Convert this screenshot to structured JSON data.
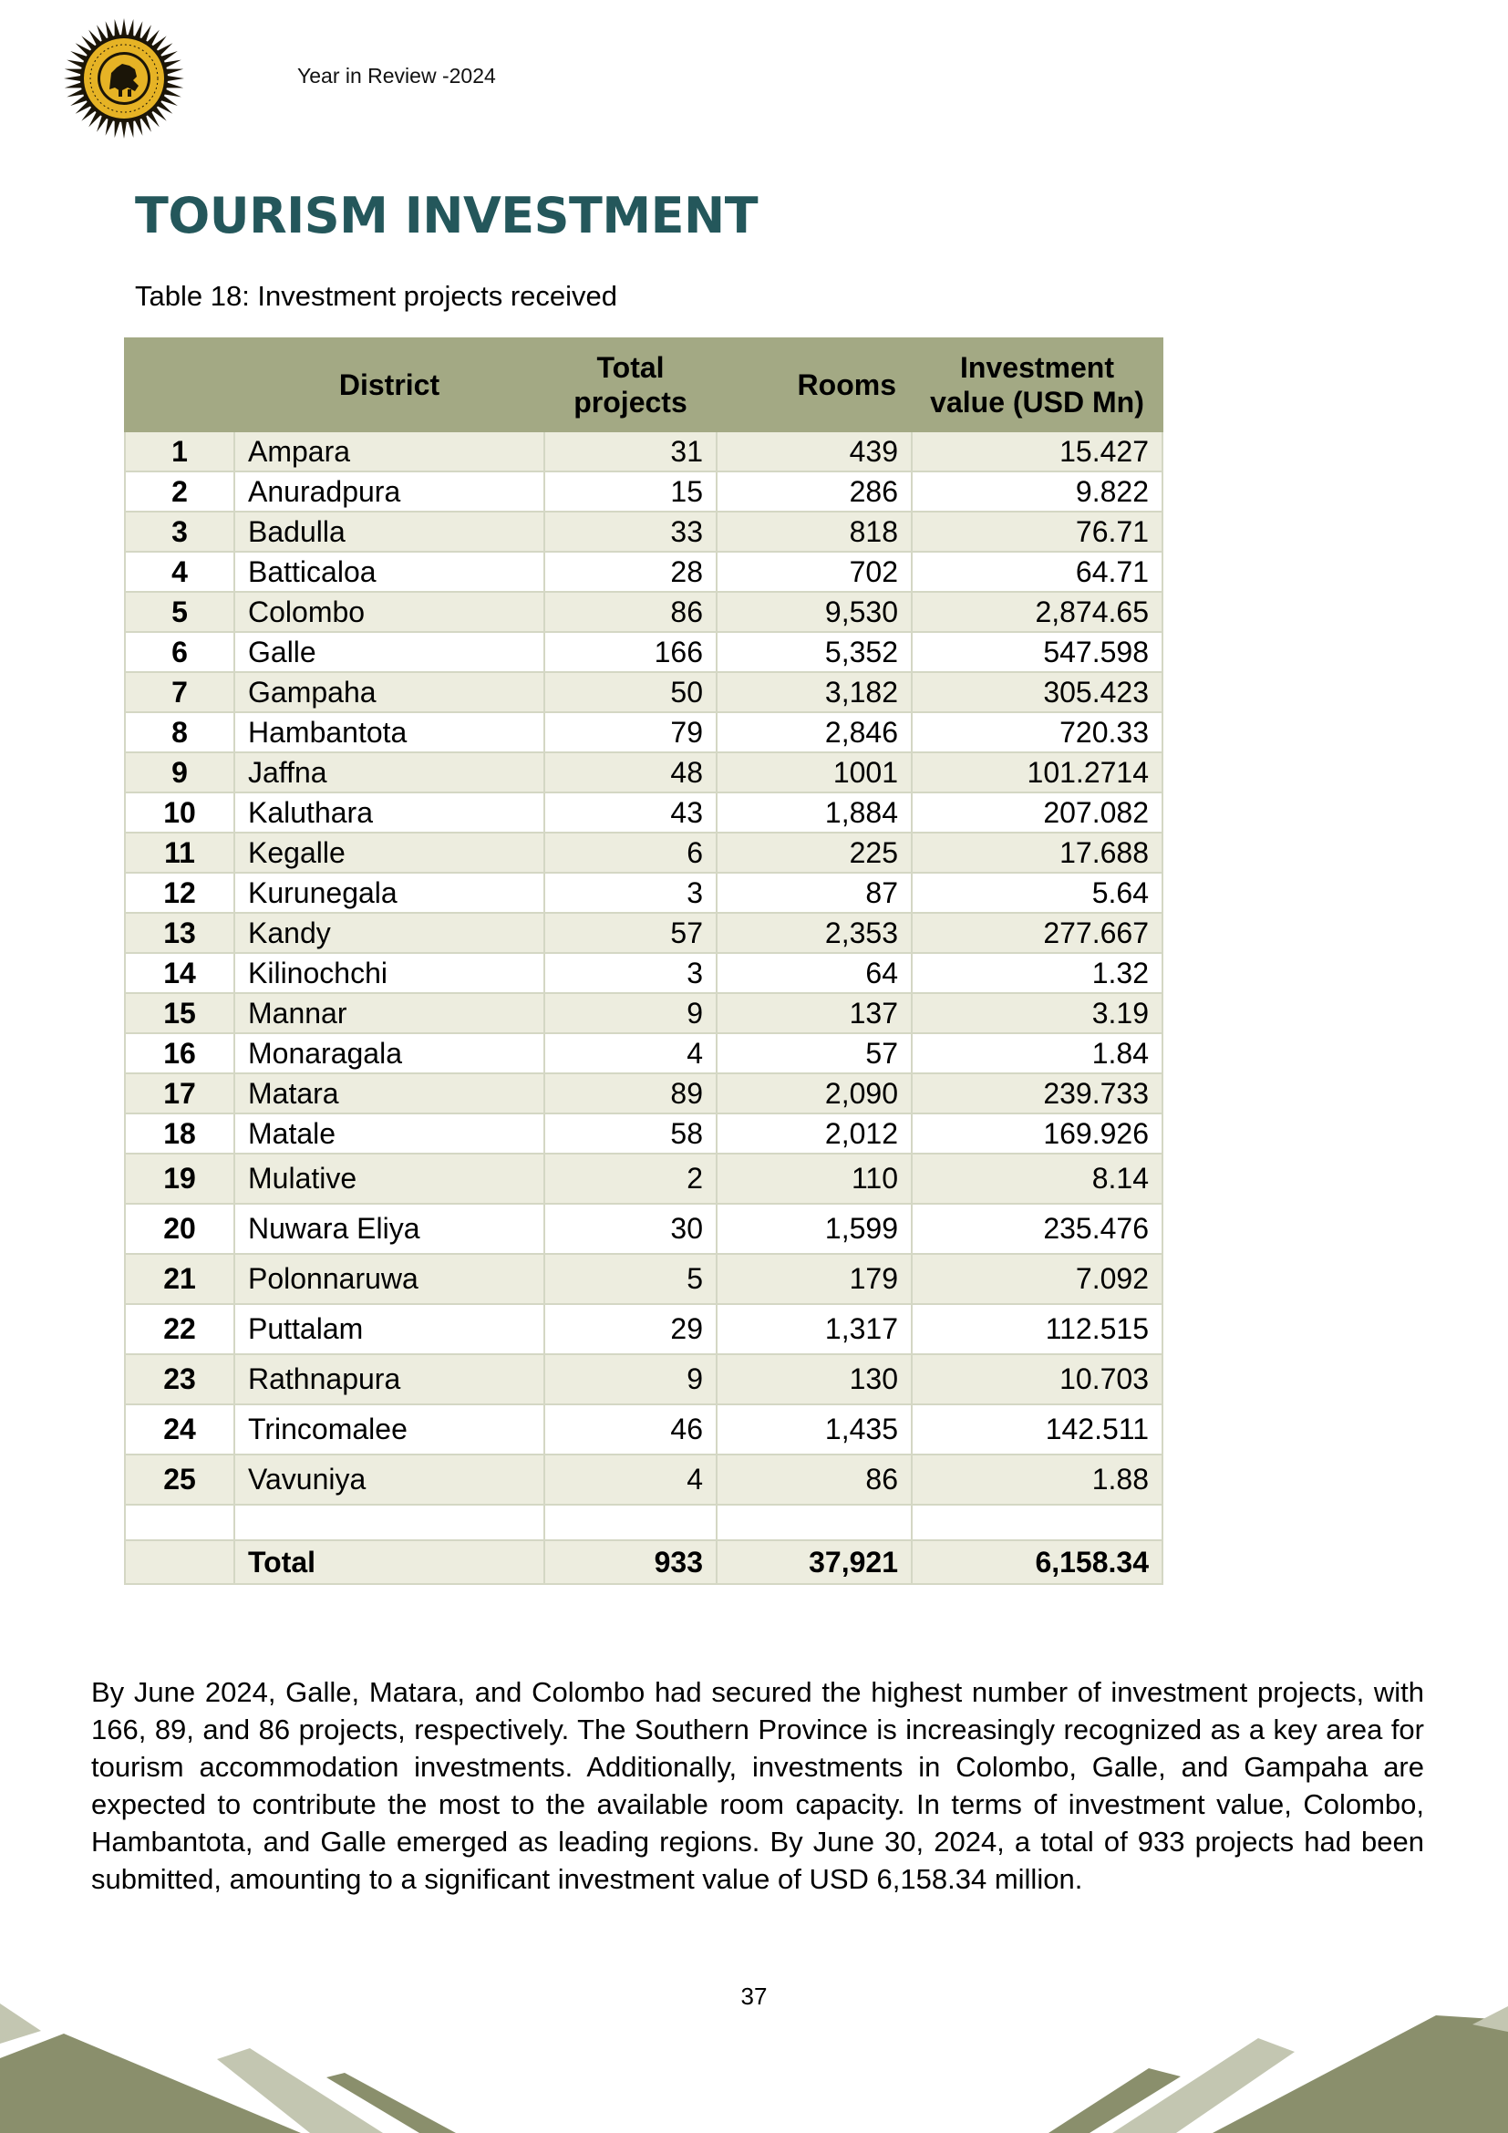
{
  "header": {
    "running_title": "Year in Review -2024",
    "logo_text": "SRI LANKA TOURISM DEVELOPMENT AUTHORITY"
  },
  "section_title": "TOURISM INVESTMENT",
  "table_caption": "Table 18: Investment projects received",
  "table": {
    "columns": [
      "",
      "District",
      "Total projects",
      "Rooms",
      "Investment value (USD Mn)"
    ],
    "rows": [
      {
        "no": "1",
        "district": "Ampara",
        "projects": "31",
        "rooms": "439",
        "investment": "15.427"
      },
      {
        "no": "2",
        "district": "Anuradpura",
        "projects": "15",
        "rooms": "286",
        "investment": "9.822"
      },
      {
        "no": "3",
        "district": "Badulla",
        "projects": "33",
        "rooms": "818",
        "investment": "76.71"
      },
      {
        "no": "4",
        "district": "Batticaloa",
        "projects": "28",
        "rooms": "702",
        "investment": "64.71"
      },
      {
        "no": "5",
        "district": "Colombo",
        "projects": "86",
        "rooms": "9,530",
        "investment": "2,874.65"
      },
      {
        "no": "6",
        "district": "Galle",
        "projects": "166",
        "rooms": "5,352",
        "investment": "547.598"
      },
      {
        "no": "7",
        "district": "Gampaha",
        "projects": "50",
        "rooms": "3,182",
        "investment": "305.423"
      },
      {
        "no": "8",
        "district": "Hambantota",
        "projects": "79",
        "rooms": "2,846",
        "investment": "720.33"
      },
      {
        "no": "9",
        "district": "Jaffna",
        "projects": "48",
        "rooms": "1001",
        "investment": "101.2714"
      },
      {
        "no": "10",
        "district": "Kaluthara",
        "projects": "43",
        "rooms": "1,884",
        "investment": "207.082"
      },
      {
        "no": "11",
        "district": "Kegalle",
        "projects": "6",
        "rooms": "225",
        "investment": "17.688"
      },
      {
        "no": "12",
        "district": "Kurunegala",
        "projects": "3",
        "rooms": "87",
        "investment": "5.64"
      },
      {
        "no": "13",
        "district": "Kandy",
        "projects": "57",
        "rooms": "2,353",
        "investment": "277.667"
      },
      {
        "no": "14",
        "district": "Kilinochchi",
        "projects": "3",
        "rooms": "64",
        "investment": "1.32"
      },
      {
        "no": "15",
        "district": "Mannar",
        "projects": "9",
        "rooms": "137",
        "investment": "3.19"
      },
      {
        "no": "16",
        "district": "Monaragala",
        "projects": "4",
        "rooms": "57",
        "investment": "1.84"
      },
      {
        "no": "17",
        "district": "Matara",
        "projects": "89",
        "rooms": "2,090",
        "investment": "239.733"
      },
      {
        "no": "18",
        "district": "Matale",
        "projects": "58",
        "rooms": "2,012",
        "investment": "169.926"
      },
      {
        "no": "19",
        "district": "Mulative",
        "projects": "2",
        "rooms": "110",
        "investment": "8.14"
      },
      {
        "no": "20",
        "district": "Nuwara Eliya",
        "projects": "30",
        "rooms": "1,599",
        "investment": "235.476"
      },
      {
        "no": "21",
        "district": "Polonnaruwa",
        "projects": "5",
        "rooms": "179",
        "investment": "7.092"
      },
      {
        "no": "22",
        "district": "Puttalam",
        "projects": "29",
        "rooms": "1,317",
        "investment": "112.515"
      },
      {
        "no": "23",
        "district": "Rathnapura",
        "projects": "9",
        "rooms": "130",
        "investment": "10.703"
      },
      {
        "no": "24",
        "district": "Trincomalee",
        "projects": "46",
        "rooms": "1,435",
        "investment": "142.511"
      },
      {
        "no": "25",
        "district": "Vavuniya",
        "projects": "4",
        "rooms": "86",
        "investment": "1.88"
      }
    ],
    "total": {
      "label": "Total",
      "projects": "933",
      "rooms": "37,921",
      "investment": "6,158.34"
    }
  },
  "paragraph": "By June 2024, Galle, Matara, and Colombo had secured the highest number of investment projects, with 166, 89, and 86 projects, respectively. The Southern Province is increasingly recognized as a key area for tourism accommodation investments. Additionally, investments in Colombo, Galle, and Gampaha are expected to contribute the most to the available room capacity. In terms of investment value, Colombo, Hambantota, and Galle emerged as leading regions. By June 30, 2024, a total of 933 projects had been submitted, amounting to a significant investment value of USD 6,158.34 million.",
  "page_number": "37",
  "colors": {
    "title": "#24575b",
    "table_header": "#a3a984",
    "row_band": "#ededdf",
    "footer_dark": "#8a8f6c",
    "footer_light": "#c3c6b1"
  }
}
